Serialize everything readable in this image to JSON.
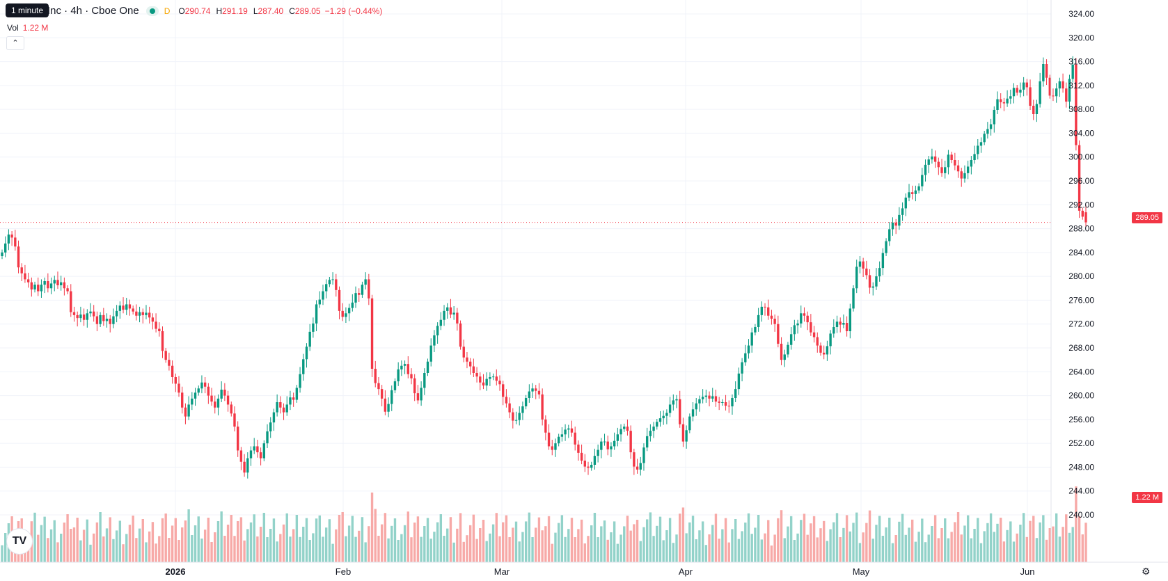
{
  "legend": {
    "symbol": "Inc · 4h · Cboe One",
    "marker": "D",
    "open_key": "O",
    "open": "290.74",
    "high_key": "H",
    "high": "291.19",
    "low_key": "L",
    "low": "287.40",
    "close_key": "C",
    "close": "289.05",
    "change": "−1.29 (−0.44%)"
  },
  "tooltip": "1 minute",
  "volume": {
    "label": "Vol",
    "value": "1.22 M"
  },
  "price_tag": "289.05",
  "volume_tag": "1.22 M",
  "icons": {
    "collapse": "chevron-up-icon",
    "logo": "tradingview-logo",
    "settings": "gear-icon"
  },
  "colors": {
    "up": "#089981",
    "down": "#f23645",
    "up_volume": "#92d2c9",
    "down_volume": "#f7a9a7"
  },
  "chart_data": {
    "type": "candlestick",
    "interval": "4h",
    "y_axis_ticks": [
      "324.00",
      "320.00",
      "316.00",
      "312.00",
      "308.00",
      "304.00",
      "300.00",
      "296.00",
      "292.00",
      "288.00",
      "284.00",
      "280.00",
      "276.00",
      "272.00",
      "268.00",
      "264.00",
      "260.00",
      "256.00",
      "252.00",
      "248.00",
      "244.00",
      "240.00"
    ],
    "ylim": [
      240,
      324
    ],
    "x_axis_labels": [
      "2026",
      "Feb",
      "Mar",
      "Apr",
      "May",
      "Jun"
    ],
    "last_price": 289.05,
    "closes": [
      284.0,
      285.5,
      287.0,
      286.5,
      285.0,
      281.5,
      280.5,
      279.5,
      279.0,
      277.8,
      278.6,
      277.5,
      278.6,
      279.2,
      278.0,
      278.8,
      279.4,
      278.5,
      279.0,
      278.0,
      277.5,
      274.0,
      273.5,
      273.0,
      273.6,
      272.7,
      273.8,
      274.1,
      273.3,
      272.0,
      273.5,
      272.5,
      272.9,
      272.0,
      273.3,
      274.2,
      275.1,
      274.4,
      275.3,
      274.6,
      274.1,
      273.4,
      274.0,
      273.5,
      273.9,
      273.1,
      272.4,
      271.2,
      270.8,
      267.5,
      266.0,
      265.0,
      263.1,
      262.0,
      260.5,
      258.0,
      256.5,
      258.5,
      259.5,
      260.5,
      261.2,
      262.2,
      261.5,
      260.0,
      259.0,
      258.0,
      259.5,
      261.0,
      260.0,
      258.5,
      257.0,
      254.8,
      250.8,
      248.9,
      247.1,
      249.5,
      250.8,
      251.5,
      250.5,
      249.5,
      252.0,
      254.0,
      255.5,
      257.2,
      258.9,
      258.0,
      257.2,
      258.5,
      259.7,
      259.3,
      261.3,
      263.6,
      266.1,
      268.2,
      270.7,
      272.1,
      275.3,
      276.1,
      277.5,
      278.7,
      279.4,
      279.5,
      277.7,
      274.2,
      273.2,
      273.8,
      274.7,
      275.6,
      277.2,
      276.9,
      278.6,
      279.5,
      276.3,
      264.5,
      262.1,
      261.1,
      259.5,
      257.3,
      258.6,
      260.9,
      262.4,
      264.4,
      265.0,
      265.3,
      263.6,
      262.9,
      260.4,
      259.2,
      261.3,
      263.8,
      265.7,
      268.4,
      270.1,
      271.7,
      272.7,
      274.2,
      274.8,
      273.6,
      273.9,
      272.1,
      268.2,
      266.4,
      265.7,
      264.9,
      263.8,
      263.2,
      262.2,
      261.7,
      262.8,
      263.1,
      263.2,
      262.5,
      261.9,
      259.8,
      258.7,
      257.2,
      255.8,
      255.9,
      257.1,
      258.2,
      259.6,
      260.7,
      261.2,
      260.8,
      260.2,
      256.0,
      253.8,
      251.5,
      250.9,
      252.0,
      253.1,
      253.5,
      254.3,
      254.5,
      253.8,
      251.8,
      250.4,
      249.1,
      248.1,
      247.9,
      248.4,
      249.9,
      250.9,
      252.3,
      252.3,
      251.0,
      251.5,
      252.4,
      253.5,
      254.4,
      254.8,
      254.1,
      250.5,
      248.1,
      247.6,
      248.7,
      251.3,
      253.2,
      254.1,
      254.8,
      255.6,
      256.2,
      256.6,
      257.1,
      258.5,
      259.2,
      259.4,
      255.2,
      252.3,
      254.2,
      256.5,
      257.7,
      258.7,
      259.4,
      259.8,
      260.0,
      259.5,
      259.9,
      259.0,
      258.8,
      258.9,
      258.3,
      258.2,
      259.6,
      261.1,
      263.7,
      265.6,
      267.1,
      268.4,
      270.6,
      271.5,
      273.5,
      274.9,
      274.8,
      273.4,
      272.9,
      272.0,
      268.7,
      266.0,
      266.9,
      268.5,
      270.3,
      271.8,
      272.1,
      273.8,
      273.4,
      272.3,
      270.6,
      269.8,
      268.4,
      267.2,
      266.9,
      268.3,
      270.4,
      271.5,
      272.4,
      271.9,
      272.2,
      270.8,
      274.6,
      278.0,
      281.6,
      282.5,
      281.3,
      280.2,
      278.1,
      278.3,
      280.0,
      281.4,
      283.9,
      285.9,
      287.9,
      289.0,
      288.5,
      290.3,
      291.4,
      293.2,
      294.1,
      293.8,
      294.4,
      295.1,
      297.0,
      298.7,
      299.6,
      300.1,
      299.2,
      298.3,
      297.3,
      298.3,
      300.4,
      299.5,
      298.6,
      297.6,
      296.4,
      297.3,
      298.4,
      299.5,
      300.5,
      301.9,
      302.5,
      303.9,
      304.7,
      305.5,
      307.9,
      309.7,
      309.2,
      309.0,
      309.8,
      310.2,
      311.6,
      310.8,
      311.3,
      312.5,
      311.7,
      308.6,
      307.2,
      308.9,
      312.7,
      315.6,
      313.3,
      310.3,
      310.2,
      311.5,
      312.7,
      311.5,
      309.3,
      313.1,
      315.5,
      302.0,
      291.0,
      290.0,
      289.05
    ]
  }
}
